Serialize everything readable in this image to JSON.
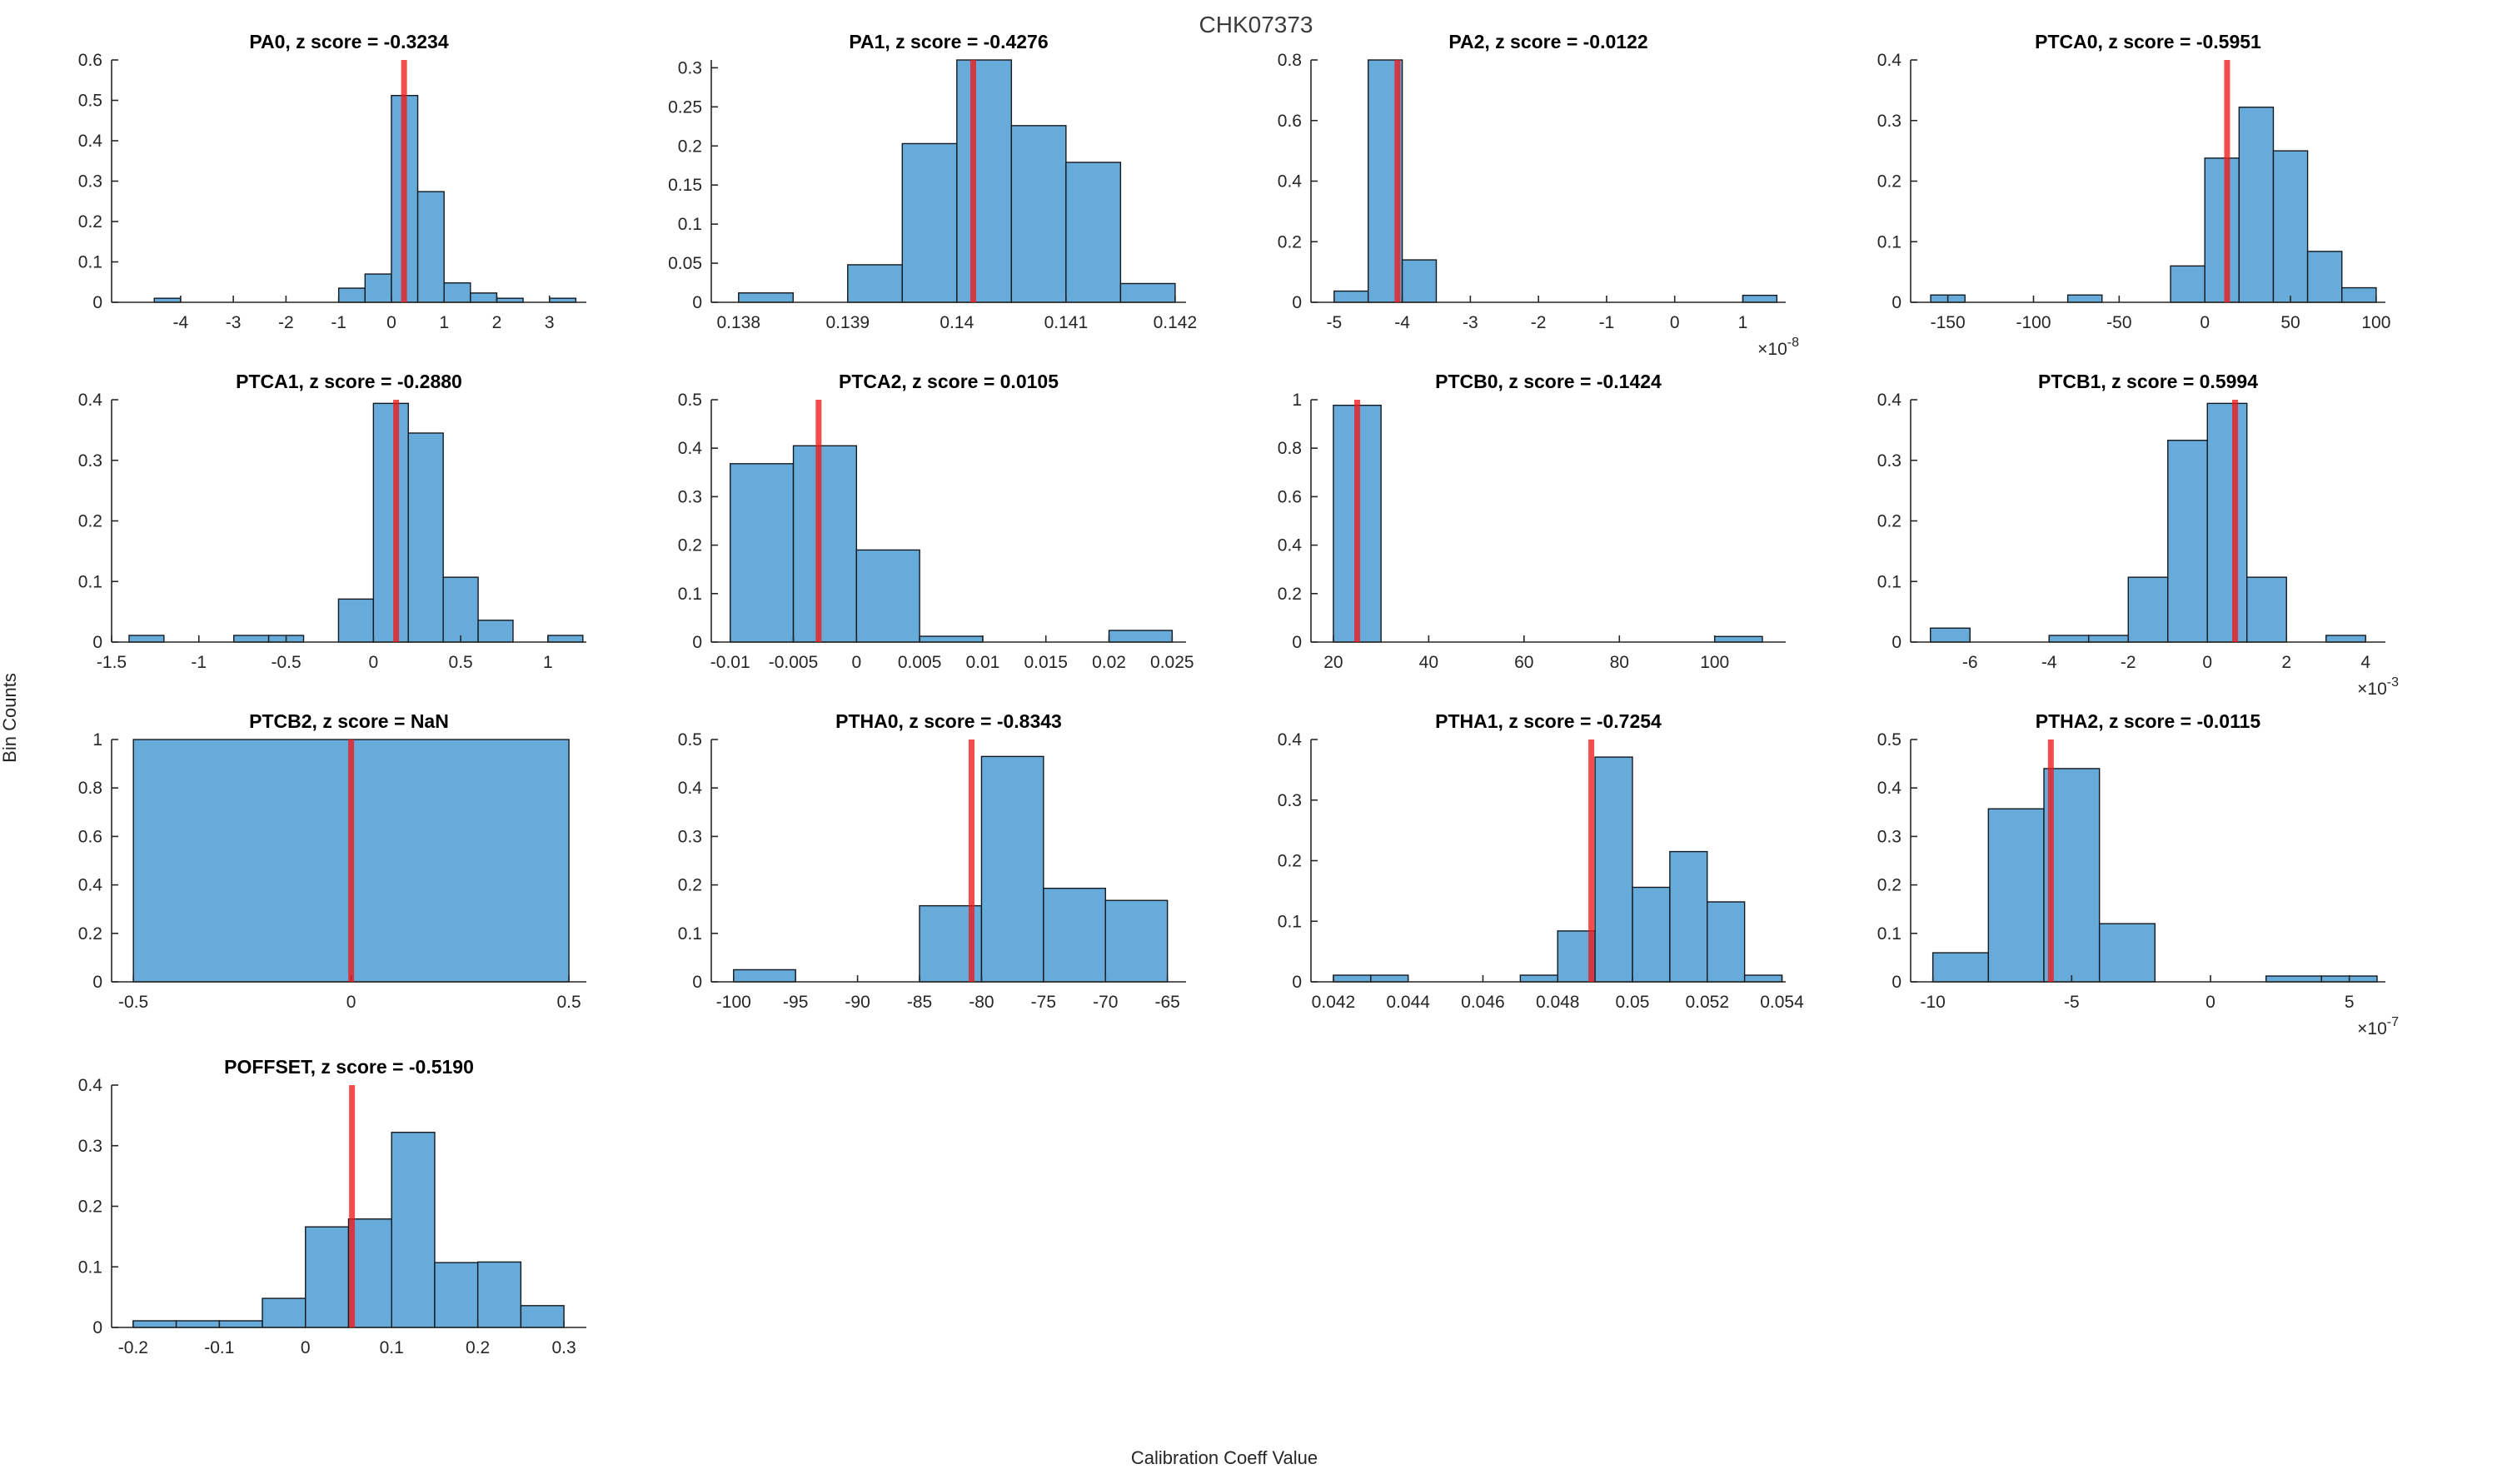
{
  "figure": {
    "title": "CHK07373",
    "xlabel": "Calibration Coeff Value",
    "ylabel": "Bin Counts"
  },
  "style": {
    "bar_fill": "#66ABD9",
    "bar_edge": "#14191F",
    "red_line": "#F01919",
    "red_line_opacity": 0.78,
    "axis_color": "#262626",
    "suptitle_color": "#3C3C3C",
    "subplot_title_color": "#000000"
  },
  "chart_data": [
    {
      "type": "bar",
      "name": "PA0",
      "title": "PA0, z score = -0.3234",
      "z_score": -0.3234,
      "grid_pos": [
        0,
        0
      ],
      "xlim": [
        -5.31,
        3.7
      ],
      "ylim": [
        0,
        0.6
      ],
      "xticks": [
        -4,
        -3,
        -2,
        -1,
        0,
        1,
        2,
        3
      ],
      "xtick_labels": [
        "-4",
        "-3",
        "-2",
        "-1",
        "0",
        "1",
        "2",
        "3"
      ],
      "yticks": [
        0,
        0.1,
        0.2,
        0.3,
        0.4,
        0.5,
        0.6
      ],
      "ytick_labels": [
        "0",
        "0.1",
        "0.2",
        "0.3",
        "0.4",
        "0.5",
        "0.6"
      ],
      "x_exponent": null,
      "bins": [
        [
          -4.5,
          -4,
          0.01
        ],
        [
          -1,
          -0.5,
          0.035
        ],
        [
          -0.5,
          0,
          0.07
        ],
        [
          0,
          0.5,
          0.512
        ],
        [
          0.5,
          1,
          0.274
        ],
        [
          1,
          1.5,
          0.048
        ],
        [
          1.5,
          2,
          0.023
        ],
        [
          2,
          2.5,
          0.01
        ],
        [
          3,
          3.5,
          0.01
        ]
      ],
      "red_line_x": 0.24
    },
    {
      "type": "bar",
      "name": "PA1",
      "title": "PA1, z score = -0.4276",
      "z_score": -0.4276,
      "grid_pos": [
        0,
        1
      ],
      "xlim": [
        0.13775,
        0.1421
      ],
      "ylim": [
        0,
        0.31
      ],
      "xticks": [
        0.138,
        0.139,
        0.14,
        0.141,
        0.142
      ],
      "xtick_labels": [
        "0.138",
        "0.139",
        "0.14",
        "0.141",
        "0.142"
      ],
      "yticks": [
        0,
        0.05,
        0.1,
        0.15,
        0.2,
        0.25,
        0.3
      ],
      "ytick_labels": [
        "0",
        "0.05",
        "0.1",
        "0.15",
        "0.2",
        "0.25",
        "0.3"
      ],
      "x_exponent": null,
      "bins": [
        [
          0.138,
          0.1385,
          0.012
        ],
        [
          0.139,
          0.1395,
          0.048
        ],
        [
          0.1395,
          0.14,
          0.203
        ],
        [
          0.14,
          0.1405,
          0.31
        ],
        [
          0.1405,
          0.141,
          0.226
        ],
        [
          0.141,
          0.1415,
          0.179
        ],
        [
          0.1415,
          0.142,
          0.024
        ]
      ],
      "red_line_x": 0.14015
    },
    {
      "type": "bar",
      "name": "PA2",
      "title": "PA2, z score = -0.0122",
      "z_score": -0.0122,
      "grid_pos": [
        0,
        2
      ],
      "xlim": [
        -5.34,
        1.63
      ],
      "ylim": [
        0,
        0.8
      ],
      "xticks": [
        -5,
        -4,
        -3,
        -2,
        -1,
        0,
        1
      ],
      "xtick_labels": [
        "-5",
        "-4",
        "-3",
        "-2",
        "-1",
        "0",
        "1"
      ],
      "yticks": [
        0,
        0.2,
        0.4,
        0.6,
        0.8
      ],
      "ytick_labels": [
        "0",
        "0.2",
        "0.4",
        "0.6",
        "0.8"
      ],
      "x_exponent": "-8",
      "bins": [
        [
          -5,
          -4.5,
          0.037
        ],
        [
          -4.5,
          -4,
          0.8
        ],
        [
          -4,
          -3.5,
          0.14
        ],
        [
          1,
          1.5,
          0.023
        ]
      ],
      "red_line_x": -4.07
    },
    {
      "type": "bar",
      "name": "PTCA0",
      "title": "PTCA0, z score = -0.5951",
      "z_score": -0.5951,
      "grid_pos": [
        0,
        3
      ],
      "xlim": [
        -171.7,
        105.4
      ],
      "ylim": [
        0,
        0.4
      ],
      "xticks": [
        -150,
        -100,
        -50,
        0,
        50,
        100
      ],
      "xtick_labels": [
        "-150",
        "-100",
        "-50",
        "0",
        "50",
        "100"
      ],
      "yticks": [
        0,
        0.1,
        0.2,
        0.3,
        0.4
      ],
      "ytick_labels": [
        "0",
        "0.1",
        "0.2",
        "0.3",
        "0.4"
      ],
      "x_exponent": null,
      "bins": [
        [
          -160,
          -140,
          0.012
        ],
        [
          -80,
          -60,
          0.012
        ],
        [
          -20,
          0,
          0.06
        ],
        [
          0,
          20,
          0.238
        ],
        [
          20,
          40,
          0.322
        ],
        [
          40,
          60,
          0.25
        ],
        [
          60,
          80,
          0.084
        ],
        [
          80,
          100,
          0.024
        ]
      ],
      "red_line_x": 13
    },
    {
      "type": "bar",
      "name": "PTCA1",
      "title": "PTCA1, z score = -0.2880",
      "z_score": -0.288,
      "grid_pos": [
        1,
        0
      ],
      "xlim": [
        -1.5,
        1.22
      ],
      "ylim": [
        0,
        0.4
      ],
      "xticks": [
        -1.5,
        -1,
        -0.5,
        0,
        0.5,
        1
      ],
      "xtick_labels": [
        "-1.5",
        "-1",
        "-0.5",
        "0",
        "0.5",
        "1"
      ],
      "yticks": [
        0,
        0.1,
        0.2,
        0.3,
        0.4
      ],
      "ytick_labels": [
        "0",
        "0.1",
        "0.2",
        "0.3",
        "0.4"
      ],
      "x_exponent": null,
      "bins": [
        [
          -1.4,
          -1.2,
          0.011
        ],
        [
          -0.8,
          -0.6,
          0.011
        ],
        [
          -0.6,
          -0.4,
          0.011
        ],
        [
          -0.2,
          0,
          0.071
        ],
        [
          0,
          0.2,
          0.394
        ],
        [
          0.2,
          0.4,
          0.345
        ],
        [
          0.4,
          0.6,
          0.107
        ],
        [
          0.6,
          0.8,
          0.036
        ],
        [
          1.0,
          1.2,
          0.011
        ]
      ],
      "red_line_x": 0.13
    },
    {
      "type": "bar",
      "name": "PTCA2",
      "title": "PTCA2, z score = 0.0105",
      "z_score": 0.0105,
      "grid_pos": [
        1,
        1
      ],
      "xlim": [
        -0.0115,
        0.0261
      ],
      "ylim": [
        0,
        0.5
      ],
      "xticks": [
        -0.01,
        -0.005,
        0,
        0.005,
        0.01,
        0.015,
        0.02,
        0.025
      ],
      "xtick_labels": [
        "-0.01",
        "-0.005",
        "0",
        "0.005",
        "0.01",
        "0.015",
        "0.02",
        "0.025"
      ],
      "yticks": [
        0,
        0.1,
        0.2,
        0.3,
        0.4,
        0.5
      ],
      "ytick_labels": [
        "0",
        "0.1",
        "0.2",
        "0.3",
        "0.4",
        "0.5"
      ],
      "x_exponent": null,
      "bins": [
        [
          -0.01,
          -0.005,
          0.368
        ],
        [
          -0.005,
          0,
          0.405
        ],
        [
          0,
          0.005,
          0.19
        ],
        [
          0.005,
          0.01,
          0.012
        ],
        [
          0.02,
          0.025,
          0.024
        ]
      ],
      "red_line_x": -0.003
    },
    {
      "type": "bar",
      "name": "PTCB0",
      "title": "PTCB0, z score = -0.1424",
      "z_score": -0.1424,
      "grid_pos": [
        1,
        2
      ],
      "xlim": [
        15.3,
        114.9
      ],
      "ylim": [
        0,
        1
      ],
      "xticks": [
        20,
        40,
        60,
        80,
        100
      ],
      "xtick_labels": [
        "20",
        "40",
        "60",
        "80",
        "100"
      ],
      "yticks": [
        0,
        0.2,
        0.4,
        0.6,
        0.8,
        1
      ],
      "ytick_labels": [
        "0",
        "0.2",
        "0.4",
        "0.6",
        "0.8",
        "1"
      ],
      "x_exponent": null,
      "bins": [
        [
          20,
          30,
          0.977
        ],
        [
          100,
          110,
          0.023
        ]
      ],
      "red_line_x": 25
    },
    {
      "type": "bar",
      "name": "PTCB1",
      "title": "PTCB1, z score = 0.5994",
      "z_score": 0.5994,
      "grid_pos": [
        1,
        3
      ],
      "xlim": [
        -7.5,
        4.5
      ],
      "ylim": [
        0,
        0.4
      ],
      "xticks": [
        -6,
        -4,
        -2,
        0,
        2,
        4
      ],
      "xtick_labels": [
        "-6",
        "-4",
        "-2",
        "0",
        "2",
        "4"
      ],
      "yticks": [
        0,
        0.1,
        0.2,
        0.3,
        0.4
      ],
      "ytick_labels": [
        "0",
        "0.1",
        "0.2",
        "0.3",
        "0.4"
      ],
      "x_exponent": "-3",
      "bins": [
        [
          -7,
          -6,
          0.023
        ],
        [
          -4,
          -3,
          0.011
        ],
        [
          -3,
          -2,
          0.011
        ],
        [
          -2,
          -1,
          0.107
        ],
        [
          -1,
          0,
          0.333
        ],
        [
          0,
          1,
          0.394
        ],
        [
          1,
          2,
          0.107
        ],
        [
          3,
          4,
          0.011
        ]
      ],
      "red_line_x": 0.7
    },
    {
      "type": "bar",
      "name": "PTCB2",
      "title": "PTCB2, z score = NaN",
      "z_score": null,
      "grid_pos": [
        2,
        0
      ],
      "xlim": [
        -0.55,
        0.54
      ],
      "ylim": [
        0,
        1
      ],
      "xticks": [
        -0.5,
        0,
        0.5
      ],
      "xtick_labels": [
        "-0.5",
        "0",
        "0.5"
      ],
      "yticks": [
        0,
        0.2,
        0.4,
        0.6,
        0.8,
        1
      ],
      "ytick_labels": [
        "0",
        "0.2",
        "0.4",
        "0.6",
        "0.8",
        "1"
      ],
      "x_exponent": null,
      "bins": [
        [
          -0.5,
          0.5,
          1.0
        ]
      ],
      "red_line_x": 0
    },
    {
      "type": "bar",
      "name": "PTHA0",
      "title": "PTHA0, z score = -0.8343",
      "z_score": -0.8343,
      "grid_pos": [
        2,
        1
      ],
      "xlim": [
        -101.8,
        -63.5
      ],
      "ylim": [
        0,
        0.5
      ],
      "xticks": [
        -100,
        -95,
        -90,
        -85,
        -80,
        -75,
        -70,
        -65
      ],
      "xtick_labels": [
        "-100",
        "-95",
        "-90",
        "-85",
        "-80",
        "-75",
        "-70",
        "-65"
      ],
      "yticks": [
        0,
        0.1,
        0.2,
        0.3,
        0.4,
        0.5
      ],
      "ytick_labels": [
        "0",
        "0.1",
        "0.2",
        "0.3",
        "0.4",
        "0.5"
      ],
      "x_exponent": null,
      "bins": [
        [
          -100,
          -95,
          0.025
        ],
        [
          -85,
          -80,
          0.157
        ],
        [
          -80,
          -75,
          0.465
        ],
        [
          -75,
          -70,
          0.193
        ],
        [
          -70,
          -65,
          0.168
        ]
      ],
      "red_line_x": -80.8
    },
    {
      "type": "bar",
      "name": "PTHA1",
      "title": "PTHA1, z score = -0.7254",
      "z_score": -0.7254,
      "grid_pos": [
        2,
        2
      ],
      "xlim": [
        0.0414,
        0.0541
      ],
      "ylim": [
        0,
        0.4
      ],
      "xticks": [
        0.042,
        0.044,
        0.046,
        0.048,
        0.05,
        0.052,
        0.054
      ],
      "xtick_labels": [
        "0.042",
        "0.044",
        "0.046",
        "0.048",
        "0.05",
        "0.052",
        "0.054"
      ],
      "yticks": [
        0,
        0.1,
        0.2,
        0.3,
        0.4
      ],
      "ytick_labels": [
        "0",
        "0.1",
        "0.2",
        "0.3",
        "0.4"
      ],
      "x_exponent": null,
      "bins": [
        [
          0.042,
          0.043,
          0.011
        ],
        [
          0.043,
          0.044,
          0.011
        ],
        [
          0.047,
          0.048,
          0.011
        ],
        [
          0.048,
          0.049,
          0.084
        ],
        [
          0.049,
          0.05,
          0.371
        ],
        [
          0.05,
          0.051,
          0.156
        ],
        [
          0.051,
          0.052,
          0.215
        ],
        [
          0.052,
          0.053,
          0.132
        ],
        [
          0.053,
          0.054,
          0.011
        ]
      ],
      "red_line_x": 0.0489
    },
    {
      "type": "bar",
      "name": "PTHA2",
      "title": "PTHA2, z score = -0.0115",
      "z_score": -0.0115,
      "grid_pos": [
        2,
        3
      ],
      "xlim": [
        -10.8,
        6.3
      ],
      "ylim": [
        0,
        0.5
      ],
      "xticks": [
        -10,
        -5,
        0,
        5
      ],
      "xtick_labels": [
        "-10",
        "-5",
        "0",
        "5"
      ],
      "yticks": [
        0,
        0.1,
        0.2,
        0.3,
        0.4,
        0.5
      ],
      "ytick_labels": [
        "0",
        "0.1",
        "0.2",
        "0.3",
        "0.4",
        "0.5"
      ],
      "x_exponent": "-7",
      "bins": [
        [
          -10,
          -8,
          0.06
        ],
        [
          -8,
          -6,
          0.357
        ],
        [
          -6,
          -4,
          0.44
        ],
        [
          -4,
          -2,
          0.12
        ],
        [
          2,
          4,
          0.012
        ],
        [
          4,
          6,
          0.012
        ]
      ],
      "red_line_x": -5.75
    },
    {
      "type": "bar",
      "name": "POFFSET",
      "title": "POFFSET, z score = -0.5190",
      "z_score": -0.519,
      "grid_pos": [
        3,
        0
      ],
      "xlim": [
        -0.225,
        0.326
      ],
      "ylim": [
        0,
        0.4
      ],
      "xticks": [
        -0.2,
        -0.1,
        0,
        0.1,
        0.2,
        0.3
      ],
      "xtick_labels": [
        "-0.2",
        "-0.1",
        "0",
        "0.1",
        "0.2",
        "0.3"
      ],
      "yticks": [
        0,
        0.1,
        0.2,
        0.3,
        0.4
      ],
      "ytick_labels": [
        "0",
        "0.1",
        "0.2",
        "0.3",
        "0.4"
      ],
      "x_exponent": null,
      "bins": [
        [
          -0.2,
          -0.15,
          0.011
        ],
        [
          -0.15,
          -0.1,
          0.011
        ],
        [
          -0.1,
          -0.05,
          0.011
        ],
        [
          -0.05,
          0,
          0.048
        ],
        [
          0,
          0.05,
          0.166
        ],
        [
          0.05,
          0.1,
          0.179
        ],
        [
          0.1,
          0.15,
          0.322
        ],
        [
          0.15,
          0.2,
          0.107
        ],
        [
          0.2,
          0.25,
          0.108
        ],
        [
          0.25,
          0.3,
          0.036
        ]
      ],
      "red_line_x": 0.054
    }
  ]
}
